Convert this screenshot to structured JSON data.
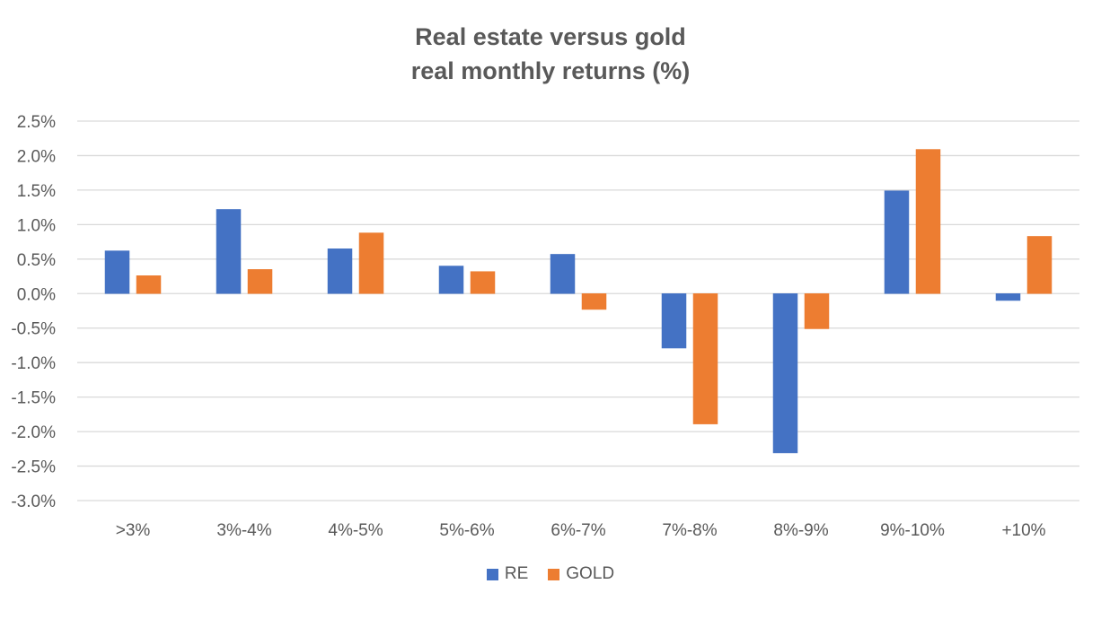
{
  "chart_data": {
    "type": "bar",
    "title_lines": [
      "Real estate versus gold",
      "real monthly returns (%)"
    ],
    "categories": [
      ">3%",
      "3%-4%",
      "4%-5%",
      "5%-6%",
      "6%-7%",
      "7%-8%",
      "8%-9%",
      "9%-10%",
      "+10%"
    ],
    "series": [
      {
        "name": "RE",
        "color": "#4472C4",
        "values": [
          0.62,
          1.22,
          0.65,
          0.4,
          0.57,
          -0.79,
          -2.31,
          1.49,
          -0.1
        ]
      },
      {
        "name": "GOLD",
        "color": "#ED7D31",
        "values": [
          0.26,
          0.35,
          0.88,
          0.32,
          -0.23,
          -1.89,
          -0.51,
          2.09,
          0.83
        ]
      }
    ],
    "ylim": [
      -3.0,
      2.5
    ],
    "ytick_step": 0.5,
    "ytick_labels": [
      "2.5%",
      "2.0%",
      "1.5%",
      "1.0%",
      "0.5%",
      "0.0%",
      "-0.5%",
      "-1.0%",
      "-1.5%",
      "-2.0%",
      "-2.5%",
      "-3.0%"
    ],
    "grid": true,
    "legend_position": "bottom"
  }
}
